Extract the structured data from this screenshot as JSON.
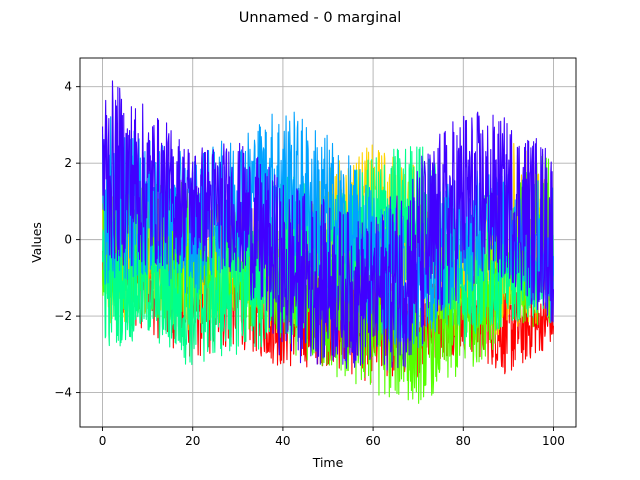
{
  "chart_data": {
    "type": "line",
    "title": "Unnamed - 0 marginal",
    "xlabel": "Time",
    "ylabel": "Values",
    "xlim": [
      -5,
      105
    ],
    "ylim": [
      -4.9,
      4.75
    ],
    "x_ticks": [
      0,
      20,
      40,
      60,
      80,
      100
    ],
    "x_tick_labels": [
      "0",
      "20",
      "40",
      "60",
      "80",
      "100"
    ],
    "y_ticks": [
      -4,
      -2,
      0,
      2,
      4
    ],
    "y_tick_labels": [
      "−4",
      "−2",
      "0",
      "2",
      "4"
    ],
    "grid": true,
    "legend": "none",
    "series": [
      {
        "color": "#ff0000",
        "x": [
          0,
          10,
          20,
          30,
          40,
          50,
          60,
          70,
          80,
          90,
          100
        ],
        "low": [
          -2.0,
          -2.4,
          -3.2,
          -2.8,
          -3.4,
          -3.3,
          -3.8,
          -3.6,
          -2.9,
          -3.6,
          -2.7
        ],
        "high": [
          0.6,
          0.2,
          0.1,
          -0.3,
          -0.6,
          -1.0,
          -0.9,
          -1.0,
          -0.6,
          -1.2,
          -1.5
        ]
      },
      {
        "color": "#ffd500",
        "x": [
          0,
          10,
          20,
          30,
          40,
          50,
          60,
          70,
          80,
          90,
          100
        ],
        "low": [
          -2.2,
          -2.1,
          -2.4,
          -1.8,
          -2.6,
          -1.2,
          -0.8,
          -1.6,
          -2.8,
          -2.5,
          -2.0
        ],
        "high": [
          1.8,
          1.4,
          1.2,
          1.0,
          0.8,
          2.0,
          2.5,
          2.0,
          0.6,
          2.6,
          2.0
        ]
      },
      {
        "color": "#55ff00",
        "x": [
          0,
          10,
          20,
          30,
          40,
          50,
          60,
          70,
          80,
          90,
          100
        ],
        "low": [
          -1.8,
          -2.0,
          -2.2,
          -2.2,
          -2.8,
          -3.6,
          -4.1,
          -4.3,
          -3.6,
          -2.5,
          -2.2
        ],
        "high": [
          2.0,
          1.5,
          1.5,
          0.5,
          0.2,
          0.0,
          -0.2,
          -1.5,
          -0.5,
          1.8,
          2.5
        ]
      },
      {
        "color": "#00ff8c",
        "x": [
          0,
          10,
          20,
          30,
          40,
          50,
          60,
          70,
          80,
          90,
          100
        ],
        "low": [
          -2.9,
          -2.6,
          -3.4,
          -3.0,
          -3.0,
          -2.0,
          -1.5,
          -1.2,
          -2.8,
          -2.2,
          -2.0
        ],
        "high": [
          0.5,
          0.2,
          -0.2,
          1.0,
          1.8,
          1.2,
          2.2,
          2.7,
          1.0,
          0.6,
          0.2
        ]
      },
      {
        "color": "#00a2ff",
        "x": [
          0,
          10,
          20,
          30,
          40,
          50,
          60,
          70,
          80,
          90,
          100
        ],
        "low": [
          -1.2,
          -1.0,
          -1.5,
          -0.5,
          -0.5,
          -1.5,
          -2.5,
          -3.0,
          -1.5,
          -1.0,
          -2.4
        ],
        "high": [
          3.5,
          2.6,
          2.2,
          2.8,
          3.6,
          2.8,
          1.5,
          0.5,
          2.0,
          1.8,
          1.5
        ]
      },
      {
        "color": "#4000ff",
        "x": [
          0,
          10,
          20,
          30,
          40,
          50,
          60,
          70,
          80,
          90,
          100
        ],
        "low": [
          -0.6,
          -0.8,
          -0.6,
          -0.9,
          -3.2,
          -3.3,
          -3.5,
          -3.3,
          -1.3,
          -1.1,
          -2.3
        ],
        "high": [
          4.35,
          3.5,
          2.5,
          2.6,
          1.6,
          1.0,
          0.5,
          2.2,
          3.5,
          3.2,
          2.5
        ]
      }
    ]
  }
}
